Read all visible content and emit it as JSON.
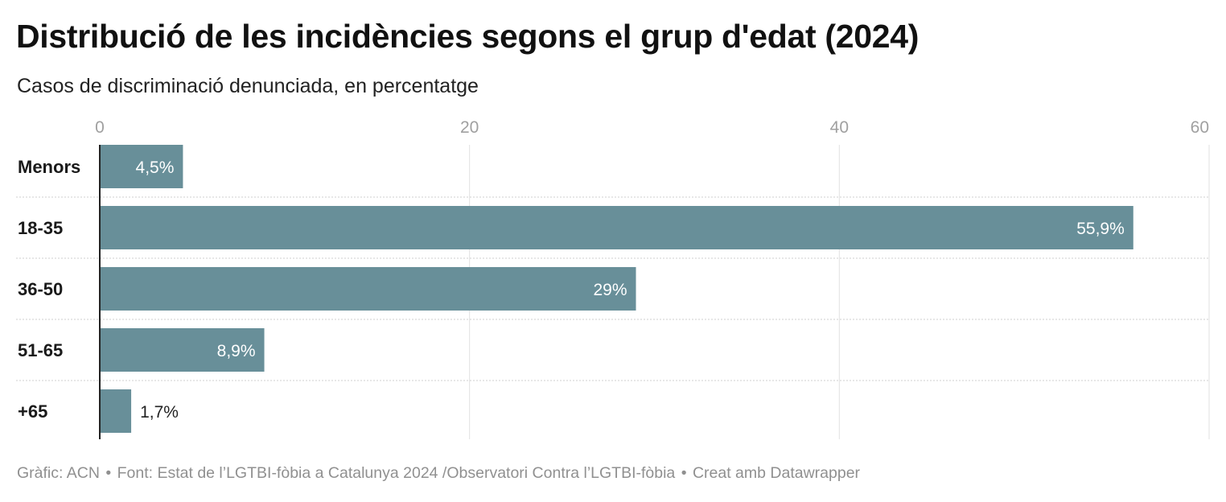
{
  "title": "Distribució de les incidències segons el grup d'edat (2024)",
  "subtitle": "Casos de discriminació denunciada, en percentatge",
  "chart_data": {
    "type": "bar",
    "orientation": "horizontal",
    "categories": [
      "Menors",
      "18-35",
      "36-50",
      "51-65",
      "+65"
    ],
    "values": [
      4.5,
      55.9,
      29,
      8.9,
      1.7
    ],
    "value_labels": [
      "4,5%",
      "55,9%",
      "29%",
      "8,9%",
      "1,7%"
    ],
    "xlim": [
      0,
      60
    ],
    "x_ticks": [
      0,
      20,
      40,
      60
    ],
    "x_tick_labels": [
      "0",
      "20",
      "40",
      "60"
    ],
    "axis_position": "top",
    "grid": true,
    "bar_color": "#688f99"
  },
  "footer": {
    "credit": "Gràfic: ACN",
    "source": "Font: Estat de l’LGTBI-fòbia a Catalunya 2024 /Observatori Contra l’LGTBI-fòbia",
    "tool": "Creat amb Datawrapper",
    "separator": "•"
  }
}
